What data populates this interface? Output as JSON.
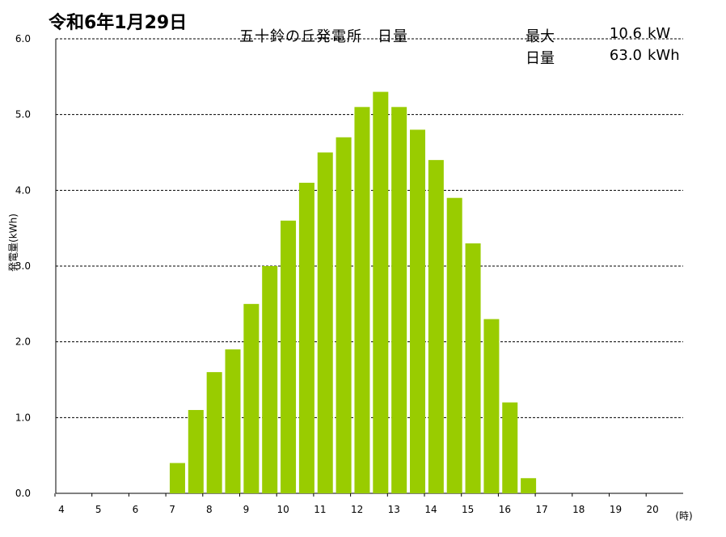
{
  "date_title": "令和6年1月29日",
  "chart_title": "五十鈴の丘発電所　日量",
  "stats": {
    "max_label": "最大",
    "max_value": "10.6",
    "max_unit": "kW",
    "total_label": "日量",
    "total_value": "63.0",
    "total_unit": "kWh"
  },
  "colors": {
    "bar": "#99cc00",
    "grid": "#000000"
  },
  "chart_data": {
    "type": "bar",
    "title": "五十鈴の丘発電所　日量",
    "ylabel": "発電量(kWh)",
    "xlabel": "(時)",
    "ylim": [
      0,
      6
    ],
    "yticks": [
      "0.0",
      "1.0",
      "2.0",
      "3.0",
      "4.0",
      "5.0",
      "6.0"
    ],
    "xticks": [
      "4",
      "5",
      "6",
      "7",
      "8",
      "9",
      "10",
      "11",
      "12",
      "13",
      "14",
      "15",
      "16",
      "17",
      "18",
      "19",
      "20"
    ],
    "grid": "horizontal dashed",
    "x": [
      7.5,
      8,
      8.5,
      9,
      9.5,
      10,
      10.5,
      11,
      11.5,
      12,
      12.5,
      13,
      13.5,
      14,
      14.5,
      15,
      15.5,
      16,
      16.5,
      17
    ],
    "values": [
      0.4,
      1.1,
      1.6,
      1.9,
      2.5,
      3.0,
      3.6,
      4.1,
      4.5,
      4.7,
      5.1,
      5.3,
      5.1,
      4.8,
      4.4,
      3.9,
      3.3,
      2.3,
      1.2,
      0.2
    ]
  }
}
